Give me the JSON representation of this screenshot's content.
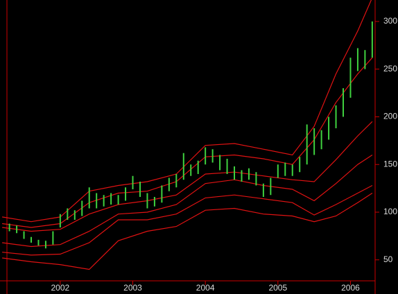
{
  "chart_data": {
    "type": "ohlc-envelope",
    "xlim": [
      2001.17,
      2006.33
    ],
    "xticks": [
      2002,
      2003,
      2004,
      2005,
      2006
    ],
    "ylim": [
      28,
      322.5
    ],
    "yticks": [
      50,
      100,
      150,
      200,
      250,
      300
    ],
    "price": {
      "color": "#3fd23f",
      "x": [
        2001.3,
        2001.4,
        2001.5,
        2001.6,
        2001.7,
        2001.8,
        2001.9,
        2002.0,
        2002.1,
        2002.2,
        2002.3,
        2002.4,
        2002.5,
        2002.6,
        2002.7,
        2002.8,
        2002.9,
        2003.0,
        2003.1,
        2003.2,
        2003.3,
        2003.4,
        2003.5,
        2003.6,
        2003.7,
        2003.8,
        2003.9,
        2004.0,
        2004.1,
        2004.2,
        2004.3,
        2004.4,
        2004.5,
        2004.6,
        2004.7,
        2004.8,
        2004.9,
        2005.0,
        2005.1,
        2005.2,
        2005.3,
        2005.4,
        2005.5,
        2005.6,
        2005.7,
        2005.8,
        2005.9,
        2006.0,
        2006.1,
        2006.2,
        2006.3
      ],
      "high": [
        88,
        86,
        80,
        74,
        71,
        70,
        80,
        98,
        104,
        102,
        112,
        126,
        120,
        118,
        120,
        118,
        126,
        138,
        132,
        120,
        116,
        128,
        136,
        140,
        162,
        150,
        154,
        168,
        166,
        160,
        156,
        148,
        144,
        146,
        142,
        130,
        136,
        150,
        152,
        150,
        158,
        192,
        188,
        186,
        200,
        212,
        230,
        262,
        272,
        270,
        300
      ],
      "low": [
        80,
        78,
        72,
        68,
        65,
        62,
        66,
        84,
        92,
        92,
        96,
        104,
        104,
        106,
        108,
        108,
        112,
        124,
        116,
        104,
        106,
        110,
        122,
        126,
        134,
        138,
        140,
        150,
        152,
        144,
        140,
        134,
        132,
        134,
        128,
        116,
        118,
        136,
        138,
        138,
        142,
        150,
        160,
        166,
        176,
        188,
        200,
        220,
        248,
        250,
        262
      ]
    },
    "envelopes": {
      "color": "#e01212",
      "x": [
        2001.2,
        2001.6,
        2002.0,
        2002.4,
        2002.8,
        2003.2,
        2003.6,
        2004.0,
        2004.4,
        2004.8,
        2005.2,
        2005.5,
        2005.8,
        2006.1,
        2006.3
      ],
      "lines": [
        {
          "values": [
            95,
            90,
            95,
            122,
            128,
            132,
            140,
            170,
            172,
            166,
            160,
            190,
            245,
            290,
            325
          ]
        },
        {
          "values": [
            88,
            84,
            88,
            110,
            120,
            122,
            132,
            158,
            160,
            156,
            150,
            176,
            215,
            245,
            262
          ]
        },
        {
          "values": [
            84,
            80,
            82,
            98,
            108,
            112,
            118,
            140,
            142,
            138,
            134,
            132,
            155,
            180,
            195
          ]
        },
        {
          "values": [
            68,
            64,
            66,
            80,
            98,
            100,
            108,
            130,
            134,
            128,
            124,
            112,
            130,
            150,
            160
          ]
        },
        {
          "values": [
            58,
            55,
            56,
            68,
            92,
            92,
            98,
            115,
            118,
            114,
            110,
            97,
            108,
            120,
            128
          ]
        },
        {
          "values": [
            52,
            48,
            45,
            40,
            70,
            80,
            85,
            102,
            104,
            98,
            96,
            90,
            96,
            110,
            120
          ]
        }
      ]
    }
  }
}
